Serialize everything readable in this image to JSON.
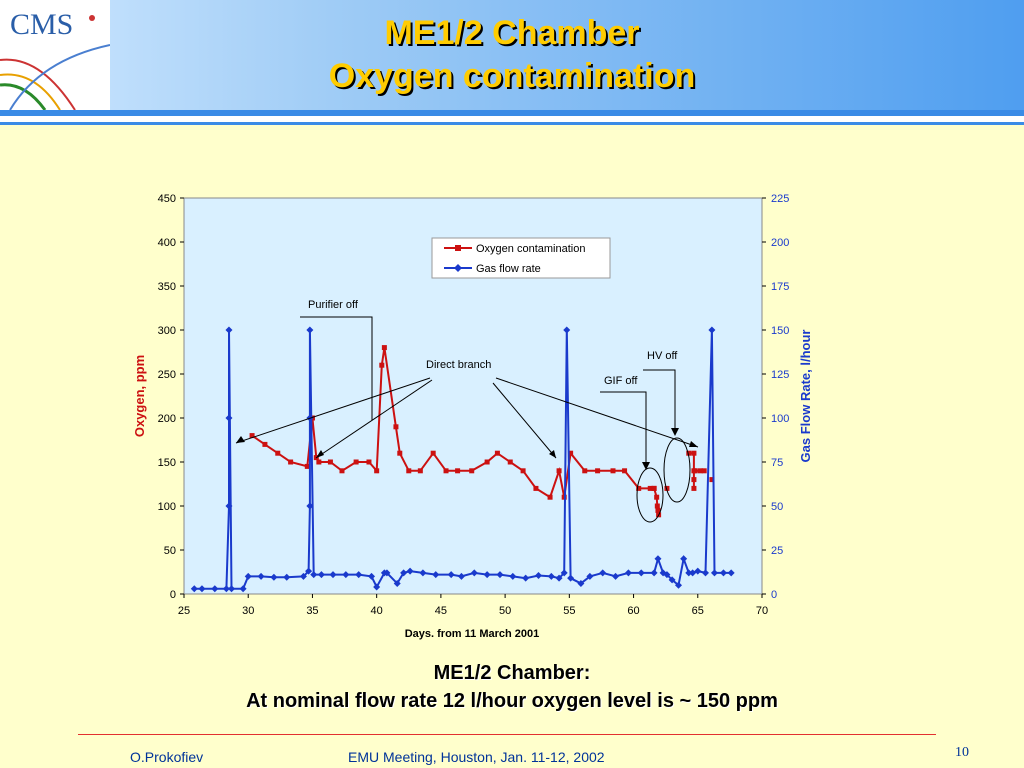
{
  "logo": {
    "text": "CMS"
  },
  "title": {
    "line1": "ME1/2 Chamber",
    "line2": "Oxygen contamination"
  },
  "chart_data": {
    "type": "line",
    "xlabel": "Days. from 11 March 2001",
    "ylabel_left": "Oxygen, ppm",
    "ylabel_right": "Gas Flow Rate, l/hour",
    "xlim": [
      25,
      70
    ],
    "ylim_left": [
      0,
      450
    ],
    "ylim_right": [
      0,
      225
    ],
    "xticks": [
      25,
      30,
      35,
      40,
      45,
      50,
      55,
      60,
      65,
      70
    ],
    "yticks_left": [
      0,
      50,
      100,
      150,
      200,
      250,
      300,
      350,
      400,
      450
    ],
    "yticks_right": [
      0,
      25,
      50,
      75,
      100,
      125,
      150,
      175,
      200,
      225
    ],
    "legend": {
      "position": "top-center",
      "entries": [
        "Oxygen contamination",
        "Gas flow rate"
      ]
    },
    "series": [
      {
        "name": "Oxygen contamination",
        "axis": "left",
        "color": "#cc1111",
        "marker": "square",
        "segments": [
          [
            [
              30.3,
              180
            ],
            [
              31.3,
              170
            ],
            [
              32.3,
              160
            ],
            [
              33.3,
              150
            ],
            [
              34.6,
              145
            ],
            [
              35,
              200
            ],
            [
              35.3,
              155
            ],
            [
              35.5,
              150
            ],
            [
              36.4,
              150
            ],
            [
              37.3,
              140
            ],
            [
              38.4,
              150
            ],
            [
              39.4,
              150
            ],
            [
              40,
              140
            ],
            [
              40.4,
              260
            ],
            [
              40.6,
              280
            ],
            [
              41.5,
              190
            ],
            [
              41.8,
              160
            ],
            [
              42.5,
              140
            ],
            [
              43.4,
              140
            ],
            [
              44.4,
              160
            ],
            [
              45.4,
              140
            ],
            [
              46.3,
              140
            ],
            [
              47.4,
              140
            ],
            [
              48.6,
              150
            ],
            [
              49.4,
              160
            ],
            [
              50.4,
              150
            ],
            [
              51.4,
              140
            ],
            [
              52.4,
              120
            ],
            [
              53.5,
              110
            ],
            [
              54.2,
              140
            ],
            [
              54.6,
              110
            ],
            [
              55.1,
              160
            ],
            [
              56.2,
              140
            ],
            [
              57.2,
              140
            ],
            [
              58.4,
              140
            ],
            [
              59.3,
              140
            ],
            [
              60.4,
              120
            ],
            [
              61.3,
              120
            ],
            [
              61.6,
              120
            ]
          ],
          [
            [
              61.6,
              120
            ],
            [
              61.8,
              110
            ],
            [
              61.85,
              100
            ],
            [
              61.9,
              95
            ],
            [
              61.95,
              90
            ]
          ],
          [
            [
              62.6,
              120
            ]
          ],
          [
            [
              64.3,
              160
            ],
            [
              64.7,
              160
            ],
            [
              64.7,
              140
            ],
            [
              64.7,
              130
            ],
            [
              64.7,
              120
            ]
          ],
          [
            [
              64.8,
              140
            ],
            [
              65.2,
              140
            ],
            [
              65.5,
              140
            ]
          ],
          [
            [
              66.1,
              130
            ]
          ]
        ]
      },
      {
        "name": "Gas flow rate",
        "axis": "right",
        "color": "#1a3acc",
        "marker": "diamond",
        "segments": [
          [
            [
              25.8,
              3
            ],
            [
              26.4,
              3
            ],
            [
              27.4,
              3
            ],
            [
              28.3,
              3
            ],
            [
              28.5,
              50
            ],
            [
              28.5,
              100
            ],
            [
              28.5,
              150
            ],
            [
              28.7,
              3
            ],
            [
              29.6,
              3
            ],
            [
              30,
              10
            ],
            [
              31,
              10
            ],
            [
              32,
              9.5
            ],
            [
              33,
              9.5
            ],
            [
              34.3,
              10
            ],
            [
              34.7,
              13
            ],
            [
              34.8,
              50
            ],
            [
              34.8,
              100
            ],
            [
              34.8,
              150
            ],
            [
              35.1,
              11
            ],
            [
              35.7,
              11
            ],
            [
              36.6,
              11
            ],
            [
              37.6,
              11
            ],
            [
              38.6,
              11
            ],
            [
              39.6,
              10
            ],
            [
              40,
              4
            ],
            [
              40.6,
              12
            ],
            [
              40.8,
              12
            ],
            [
              41.6,
              6
            ],
            [
              42.1,
              12
            ],
            [
              42.6,
              13
            ],
            [
              43.6,
              12
            ],
            [
              44.6,
              11
            ],
            [
              45.8,
              11
            ],
            [
              46.6,
              10
            ],
            [
              47.6,
              12
            ],
            [
              48.6,
              11
            ],
            [
              49.6,
              11
            ],
            [
              50.6,
              10
            ],
            [
              51.6,
              9
            ],
            [
              52.6,
              10.5
            ],
            [
              53.6,
              10
            ],
            [
              54.2,
              9
            ],
            [
              54.6,
              12
            ],
            [
              54.8,
              150
            ],
            [
              55.1,
              9
            ],
            [
              55.9,
              6
            ],
            [
              56.6,
              10
            ],
            [
              57.6,
              12
            ],
            [
              58.6,
              10
            ],
            [
              59.6,
              12
            ],
            [
              60.6,
              12
            ],
            [
              61.6,
              12
            ],
            [
              61.9,
              20
            ],
            [
              62.3,
              12
            ],
            [
              62.6,
              11
            ],
            [
              63,
              8
            ],
            [
              63.5,
              5
            ],
            [
              63.9,
              20
            ],
            [
              64.3,
              12
            ],
            [
              64.6,
              12
            ],
            [
              65,
              13
            ],
            [
              65.6,
              12
            ],
            [
              66.1,
              150
            ],
            [
              66.3,
              12
            ],
            [
              67,
              12
            ],
            [
              67.6,
              12
            ]
          ]
        ]
      }
    ],
    "annotations": [
      {
        "text": "Purifier off"
      },
      {
        "text": "Direct branch"
      },
      {
        "text": "GIF off"
      },
      {
        "text": "HV off"
      }
    ]
  },
  "subtitle": {
    "line1": "ME1/2 Chamber:",
    "line2": "At nominal flow rate 12 l/hour oxygen level is ~ 150 ppm"
  },
  "footer": {
    "author": "O.Prokofiev",
    "meeting": "EMU Meeting, Houston, Jan. 11-12,  2002",
    "page": "10"
  }
}
